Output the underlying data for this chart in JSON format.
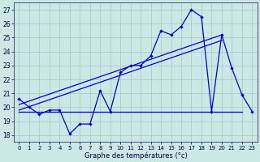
{
  "xlabel": "Graphe des températures (°c)",
  "background_color": "#cce8e4",
  "grid_color": "#aacccc",
  "line_color": "#0000cc",
  "hours": [
    0,
    1,
    2,
    3,
    4,
    5,
    6,
    7,
    8,
    9,
    10,
    11,
    12,
    13,
    14,
    15,
    16,
    17,
    18,
    19,
    20,
    21,
    22,
    23
  ],
  "series1": [
    20.6,
    20.0,
    19.5,
    19.8,
    19.8,
    18.1,
    18.8,
    18.8,
    21.2,
    19.7,
    22.5,
    23.0,
    23.0,
    23.7,
    25.5,
    25.2,
    25.8,
    27.0,
    26.5,
    19.7,
    25.2,
    22.8,
    20.9,
    19.7
  ],
  "series2_x": [
    0,
    20
  ],
  "series2_y": [
    20.2,
    25.2
  ],
  "series3_x": [
    0,
    20
  ],
  "series3_y": [
    19.8,
    24.8
  ],
  "series4_x": [
    0,
    22
  ],
  "series4_y": [
    19.7,
    19.7
  ],
  "ylim": [
    17.5,
    27.5
  ],
  "yticks": [
    18,
    19,
    20,
    21,
    22,
    23,
    24,
    25,
    26,
    27
  ],
  "xlim": [
    -0.5,
    23.5
  ],
  "xticks": [
    0,
    1,
    2,
    3,
    4,
    5,
    6,
    7,
    8,
    9,
    10,
    11,
    12,
    13,
    14,
    15,
    16,
    17,
    18,
    19,
    20,
    21,
    22,
    23
  ]
}
